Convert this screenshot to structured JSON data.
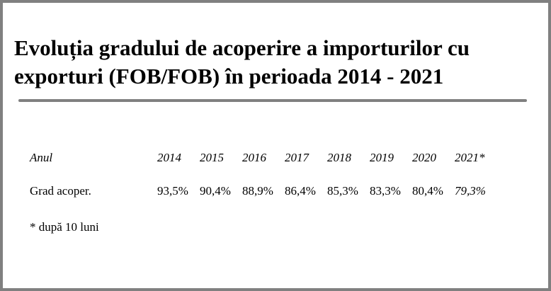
{
  "title": "Evoluția gradului de acoperire a importurilor cu exporturi (FOB/FOB) în perioada 2014 - 2021",
  "table": {
    "header": [
      "Anul",
      "2014",
      "2015",
      "2016",
      "2017",
      "2018",
      "2019",
      "2020",
      "2021*"
    ],
    "rows": [
      [
        "Grad acoper.",
        "93,5%",
        "90,4%",
        "88,9%",
        "86,4%",
        "85,3%",
        "83,3%",
        "80,4%",
        "79,3%"
      ]
    ]
  },
  "footnote": "* după 10 luni"
}
